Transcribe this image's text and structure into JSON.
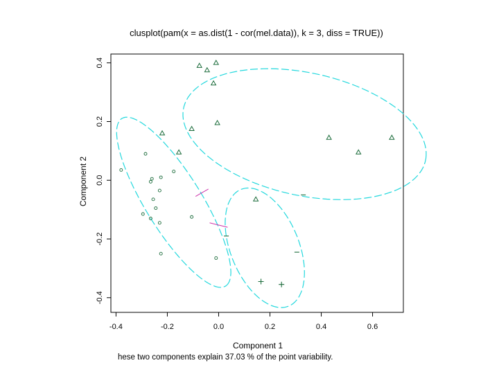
{
  "chart_data": {
    "type": "scatter",
    "title": "clusplot(pam(x = as.dist(1 - cor(mel.data)), k = 3, diss = TRUE))",
    "xlabel": "Component 1",
    "ylabel": "Component 2",
    "subtitle": "hese two components explain 37.03 % of the point variability.",
    "xlim": [
      -0.42,
      0.72
    ],
    "ylim": [
      -0.45,
      0.43
    ],
    "x_ticks": [
      "-0.4",
      "-0.2",
      "0.0",
      "0.2",
      "0.4",
      "0.6"
    ],
    "y_ticks": [
      "-0.4",
      "-0.2",
      "0.0",
      "0.2",
      "0.4"
    ],
    "grid": false,
    "colors": {
      "ellipse": "#22d8dd",
      "points": "#1a6b3a",
      "connector": "#cc33aa",
      "axes": "#000000"
    },
    "series": [
      {
        "marker": "circle",
        "points": [
          {
            "x": -0.38,
            "y": 0.035
          },
          {
            "x": -0.285,
            "y": 0.09
          },
          {
            "x": -0.175,
            "y": 0.03
          },
          {
            "x": -0.225,
            "y": 0.01
          },
          {
            "x": -0.26,
            "y": 0.005
          },
          {
            "x": -0.265,
            "y": -0.005
          },
          {
            "x": -0.23,
            "y": -0.035
          },
          {
            "x": -0.255,
            "y": -0.065
          },
          {
            "x": -0.245,
            "y": -0.095
          },
          {
            "x": -0.295,
            "y": -0.115
          },
          {
            "x": -0.265,
            "y": -0.13
          },
          {
            "x": -0.23,
            "y": -0.145
          },
          {
            "x": -0.105,
            "y": -0.125
          },
          {
            "x": -0.225,
            "y": -0.25
          },
          {
            "x": -0.01,
            "y": -0.265
          }
        ]
      },
      {
        "marker": "triangle",
        "points": [
          {
            "x": -0.075,
            "y": 0.39
          },
          {
            "x": -0.01,
            "y": 0.4
          },
          {
            "x": -0.045,
            "y": 0.375
          },
          {
            "x": -0.02,
            "y": 0.33
          },
          {
            "x": -0.105,
            "y": 0.175
          },
          {
            "x": -0.005,
            "y": 0.195
          },
          {
            "x": -0.22,
            "y": 0.16
          },
          {
            "x": -0.155,
            "y": 0.095
          },
          {
            "x": 0.43,
            "y": 0.145
          },
          {
            "x": 0.545,
            "y": 0.095
          },
          {
            "x": 0.675,
            "y": 0.145
          },
          {
            "x": 0.145,
            "y": -0.065
          }
        ]
      },
      {
        "marker": "plus",
        "points": [
          {
            "x": 0.165,
            "y": -0.345
          },
          {
            "x": 0.245,
            "y": -0.355
          }
        ]
      },
      {
        "marker": "minus",
        "points": [
          {
            "x": 0.33,
            "y": -0.05
          },
          {
            "x": 0.03,
            "y": -0.19
          },
          {
            "x": 0.305,
            "y": -0.245
          }
        ]
      }
    ],
    "ellipses": [
      {
        "cx": -0.175,
        "cy": -0.075,
        "rx": 0.35,
        "ry": 0.105,
        "angle_deg": -54
      },
      {
        "cx": 0.335,
        "cy": 0.157,
        "rx": 0.48,
        "ry": 0.21,
        "angle_deg": -10
      },
      {
        "cx": 0.18,
        "cy": -0.23,
        "rx": 0.22,
        "ry": 0.13,
        "angle_deg": -62
      }
    ],
    "connectors": [
      {
        "x1": -0.09,
        "y1": -0.055,
        "x2": -0.04,
        "y2": -0.03
      },
      {
        "x1": -0.035,
        "y1": -0.145,
        "x2": 0.035,
        "y2": -0.16
      }
    ]
  }
}
